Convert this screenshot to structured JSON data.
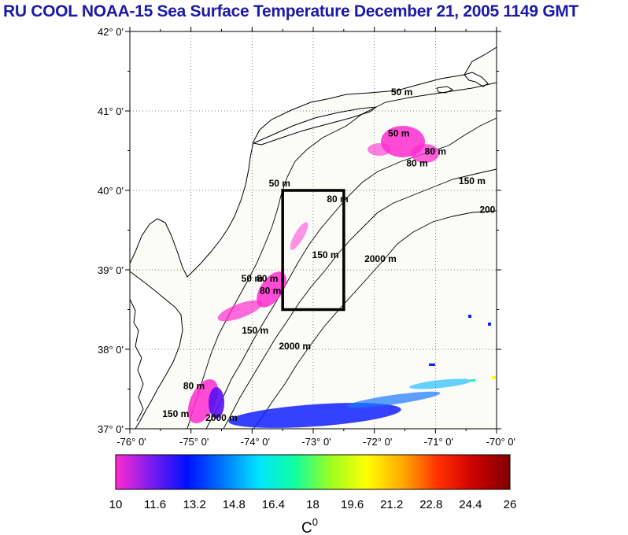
{
  "title": "RU COOL  NOAA-15 Sea Surface Temperature December 21, 2005 1149 GMT",
  "map": {
    "lon_range": [
      -76,
      -70
    ],
    "lat_range": [
      37,
      42
    ],
    "grid": "dotted",
    "lat_tick_labels": [
      "42° 0'",
      "41° 0'",
      "40° 0'",
      "39° 0'",
      "38° 0'",
      "37° 0'"
    ],
    "lat_values": [
      42,
      41,
      40,
      39,
      38,
      37
    ],
    "lon_tick_labels": [
      "-76° 0'",
      "-75° 0'",
      "-74° 0'",
      "-73° 0'",
      "-72° 0'",
      "-71° 0'",
      "-70° 0'"
    ],
    "lon_values": [
      -76,
      -75,
      -74,
      -73,
      -72,
      -71,
      -70
    ],
    "study_box": {
      "lon": [
        -73.5,
        -72.5
      ],
      "lat": [
        38.5,
        40.0
      ]
    },
    "contour_labels": [
      {
        "text": "50 m",
        "lon": -71.55,
        "lat": 41.2
      },
      {
        "text": "50 m",
        "lon": -71.6,
        "lat": 40.68
      },
      {
        "text": "80 m",
        "lon": -71.0,
        "lat": 40.45
      },
      {
        "text": "80 m",
        "lon": -71.3,
        "lat": 40.3
      },
      {
        "text": "150 m",
        "lon": -70.4,
        "lat": 40.08
      },
      {
        "text": "200",
        "lon": -70.15,
        "lat": 39.72
      },
      {
        "text": "50 m",
        "lon": -73.55,
        "lat": 40.05
      },
      {
        "text": "80 m",
        "lon": -72.6,
        "lat": 39.85
      },
      {
        "text": "150 m",
        "lon": -72.8,
        "lat": 39.15
      },
      {
        "text": "2000 m",
        "lon": -71.9,
        "lat": 39.1
      },
      {
        "text": "50 m",
        "lon": -74.0,
        "lat": 38.85
      },
      {
        "text": "80 m",
        "lon": -73.75,
        "lat": 38.85
      },
      {
        "text": "80 m",
        "lon": -73.7,
        "lat": 38.7
      },
      {
        "text": "150 m",
        "lon": -73.95,
        "lat": 38.2
      },
      {
        "text": "2000 m",
        "lon": -73.3,
        "lat": 38.0
      },
      {
        "text": "80 m",
        "lon": -74.95,
        "lat": 37.5
      },
      {
        "text": "150 m",
        "lon": -75.25,
        "lat": 37.15
      },
      {
        "text": "2000 m",
        "lon": -74.5,
        "lat": 37.1
      }
    ]
  },
  "colorbar": {
    "min": 10,
    "max": 26,
    "tick_labels": [
      "10",
      "11.6",
      "13.2",
      "14.8",
      "16.4",
      "18",
      "19.6",
      "21.2",
      "22.8",
      "24.4",
      "26"
    ],
    "unit": "C",
    "unit_superscript": "0",
    "colors": [
      "#ff2bd0",
      "#7a1cf0",
      "#0010ff",
      "#0078ff",
      "#00e4ff",
      "#10ffa0",
      "#9cff20",
      "#ffff00",
      "#ffaa00",
      "#ff3000",
      "#cc0000",
      "#800000"
    ]
  },
  "colors": {
    "land": "#ffffff",
    "ocean": "#fbfbf8",
    "coastline": "#000000",
    "title": "#1a1aa8"
  }
}
